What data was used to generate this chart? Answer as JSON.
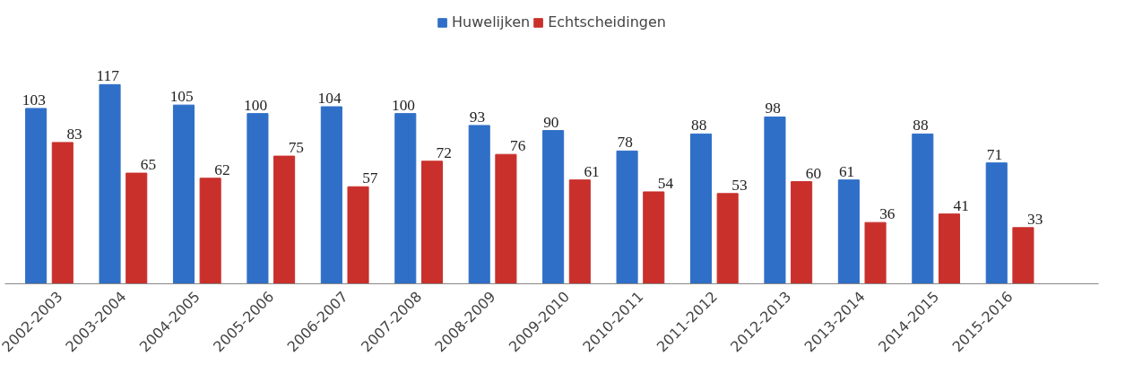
{
  "chart_data": {
    "type": "bar",
    "categories": [
      "2002-2003",
      "2003-2004",
      "2004-2005",
      "2005-2006",
      "2006-2007",
      "2007-2008",
      "2008-2009",
      "2009-2010",
      "2010-2011",
      "2011-2012",
      "2012-2013",
      "2013-2014",
      "2014-2015",
      "2015-2016"
    ],
    "series": [
      {
        "name": "Huwelijken",
        "color": "#2f6fc7",
        "values": [
          103,
          117,
          105,
          100,
          104,
          100,
          93,
          90,
          78,
          88,
          98,
          61,
          88,
          71
        ]
      },
      {
        "name": "Echtscheidingen",
        "color": "#c9302c",
        "values": [
          83,
          65,
          62,
          75,
          57,
          72,
          76,
          61,
          54,
          53,
          60,
          36,
          41,
          33
        ]
      }
    ],
    "data_labels": true,
    "legend": "top",
    "grid": false
  }
}
